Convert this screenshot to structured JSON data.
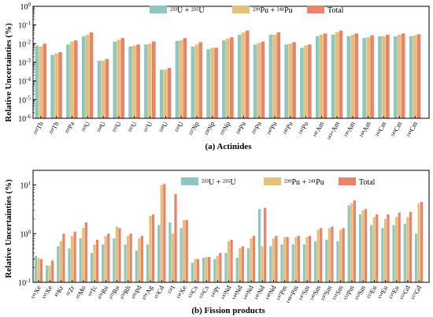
{
  "colors": {
    "u": "#8fc7c0",
    "pu": "#e6c07a",
    "total": "#e8846a",
    "axis": "#000000"
  },
  "chart_data": [
    {
      "type": "bar",
      "panel_label": "(a) Actinides",
      "ylabel": "Relative Uncertainties (%)",
      "yscale": "log",
      "ylim": [
        1e-06,
        1
      ],
      "yticks": [
        "10^-6",
        "10^-5",
        "10^-4",
        "10^-3",
        "10^-2",
        "10^-1",
        "10^0"
      ],
      "legend": {
        "position": "top-center",
        "entries": [
          "²³³U + ²³⁵U",
          "²³⁹Pu + ²⁴¹Pu",
          "Total"
        ]
      },
      "categories": [
        "²³²Th",
        "²³³Th",
        "²³³Pa",
        "²³³U",
        "²³⁴U",
        "²³⁵U",
        "²³⁶U",
        "²³⁷U",
        "²³⁸U",
        "²³⁹U",
        "²³⁷Np",
        "²³⁸Np",
        "²³⁹Np",
        "²³⁸Pu",
        "²³⁹Pu",
        "²⁴⁰Pu",
        "²⁴¹Pu",
        "²⁴²Pu",
        "²⁴¹Am",
        "²⁴²ᵐAm",
        "²⁴³Am",
        "²⁴⁴Am",
        "²⁴²Cm",
        "²⁴³Cm",
        "²⁴⁴Cm"
      ],
      "series": [
        {
          "name": "²³³U + ²³⁵U",
          "values": [
            0.008,
            0.0025,
            0.009,
            0.025,
            0.0012,
            0.013,
            0.007,
            0.009,
            0.0004,
            0.014,
            0.007,
            0.005,
            0.015,
            0.03,
            0.009,
            0.03,
            0.009,
            0.006,
            0.025,
            0.03,
            0.025,
            0.02,
            0.025,
            0.025,
            0.025
          ]
        },
        {
          "name": "²³⁹Pu + ²⁴¹Pu",
          "values": [
            0.007,
            0.003,
            0.013,
            0.03,
            0.0012,
            0.016,
            0.008,
            0.01,
            0.0004,
            0.015,
            0.009,
            0.006,
            0.019,
            0.04,
            0.011,
            0.03,
            0.01,
            0.008,
            0.03,
            0.04,
            0.03,
            0.022,
            0.025,
            0.03,
            0.028
          ]
        },
        {
          "name": "Total",
          "values": [
            0.01,
            0.0035,
            0.015,
            0.04,
            0.0015,
            0.02,
            0.009,
            0.013,
            0.0005,
            0.02,
            0.012,
            0.006,
            0.022,
            0.05,
            0.013,
            0.04,
            0.012,
            0.009,
            0.035,
            0.05,
            0.035,
            0.028,
            0.03,
            0.035,
            0.032
          ]
        }
      ]
    },
    {
      "type": "bar",
      "panel_label": "(b) Fission products",
      "ylabel": "Relative Uncertainties (%)",
      "yscale": "log",
      "ylim": [
        0.1,
        20
      ],
      "yticks": [
        "10^-1",
        "10^0",
        "10^1"
      ],
      "legend": {
        "position": "top-center",
        "entries": [
          "²³³U + ²³⁵U",
          "²³⁹Pu + ²⁴¹Pu",
          "Total"
        ]
      },
      "categories": [
        "¹³¹Xe",
        "¹³⁵Xe",
        "⁸⁵Kr",
        "⁹¹Zr",
        "⁹⁵Mo",
        "⁹⁹Tc",
        "¹⁰¹Ru",
        "¹⁰³Ru",
        "¹⁰³Rh",
        "¹⁰⁵Pd",
        "¹⁰⁹Ag",
        "¹¹³Cd",
        "¹³¹I",
        "¹³¹Xe",
        "¹³³Cs",
        "¹³⁵Cs",
        "¹⁴³Pr",
        "¹⁴³Nd",
        "¹⁴⁴Nd",
        "¹⁴⁵Nd",
        "¹⁴⁶Nd",
        "¹⁴⁸Nd",
        "¹⁴⁷Pm",
        "¹⁴⁸ᵐPm",
        "¹⁴⁷Sm",
        "¹⁴⁹Sm",
        "¹⁵⁰Sm",
        "¹⁵¹Sm",
        "¹⁵¹Pm",
        "¹⁵²Sm",
        "¹⁵³Eu",
        "¹⁵⁴Eu",
        "¹⁵⁵Eu",
        "¹⁵⁵Gd",
        "¹⁵⁷Gd"
      ],
      "series": [
        {
          "name": "²³³U + ²³⁵U",
          "values": [
            0.35,
            0.22,
            0.55,
            0.5,
            0.8,
            0.4,
            0.6,
            0.8,
            0.6,
            0.45,
            0.6,
            1.5,
            1.7,
            1.3,
            0.25,
            0.32,
            0.3,
            0.4,
            0.32,
            0.5,
            3.2,
            0.55,
            0.6,
            0.6,
            0.6,
            0.7,
            0.75,
            0.7,
            3.8,
            2.5,
            1.5,
            1.3,
            1.5,
            1.6,
            1.0
          ]
        },
        {
          "name": "²³⁹Pu + ²⁴¹Pu",
          "values": [
            0.32,
            0.22,
            0.7,
            0.9,
            1.3,
            0.6,
            0.9,
            1.4,
            0.9,
            0.8,
            2.3,
            10.0,
            1.0,
            1.9,
            0.3,
            0.33,
            0.35,
            0.7,
            0.5,
            0.8,
            0.55,
            0.8,
            0.85,
            0.85,
            0.85,
            1.2,
            1.3,
            1.2,
            4.2,
            3.0,
            2.2,
            2.0,
            2.2,
            2.2,
            4.2
          ]
        },
        {
          "name": "Total",
          "values": [
            0.3,
            0.28,
            1.0,
            1.1,
            1.7,
            0.75,
            1.0,
            1.3,
            1.0,
            0.9,
            2.5,
            10.5,
            6.5,
            1.9,
            0.3,
            0.33,
            0.4,
            0.75,
            0.55,
            0.9,
            3.4,
            0.9,
            0.85,
            0.9,
            0.9,
            1.3,
            1.4,
            1.3,
            4.8,
            3.2,
            2.5,
            2.5,
            2.7,
            2.8,
            4.5
          ]
        }
      ]
    }
  ]
}
